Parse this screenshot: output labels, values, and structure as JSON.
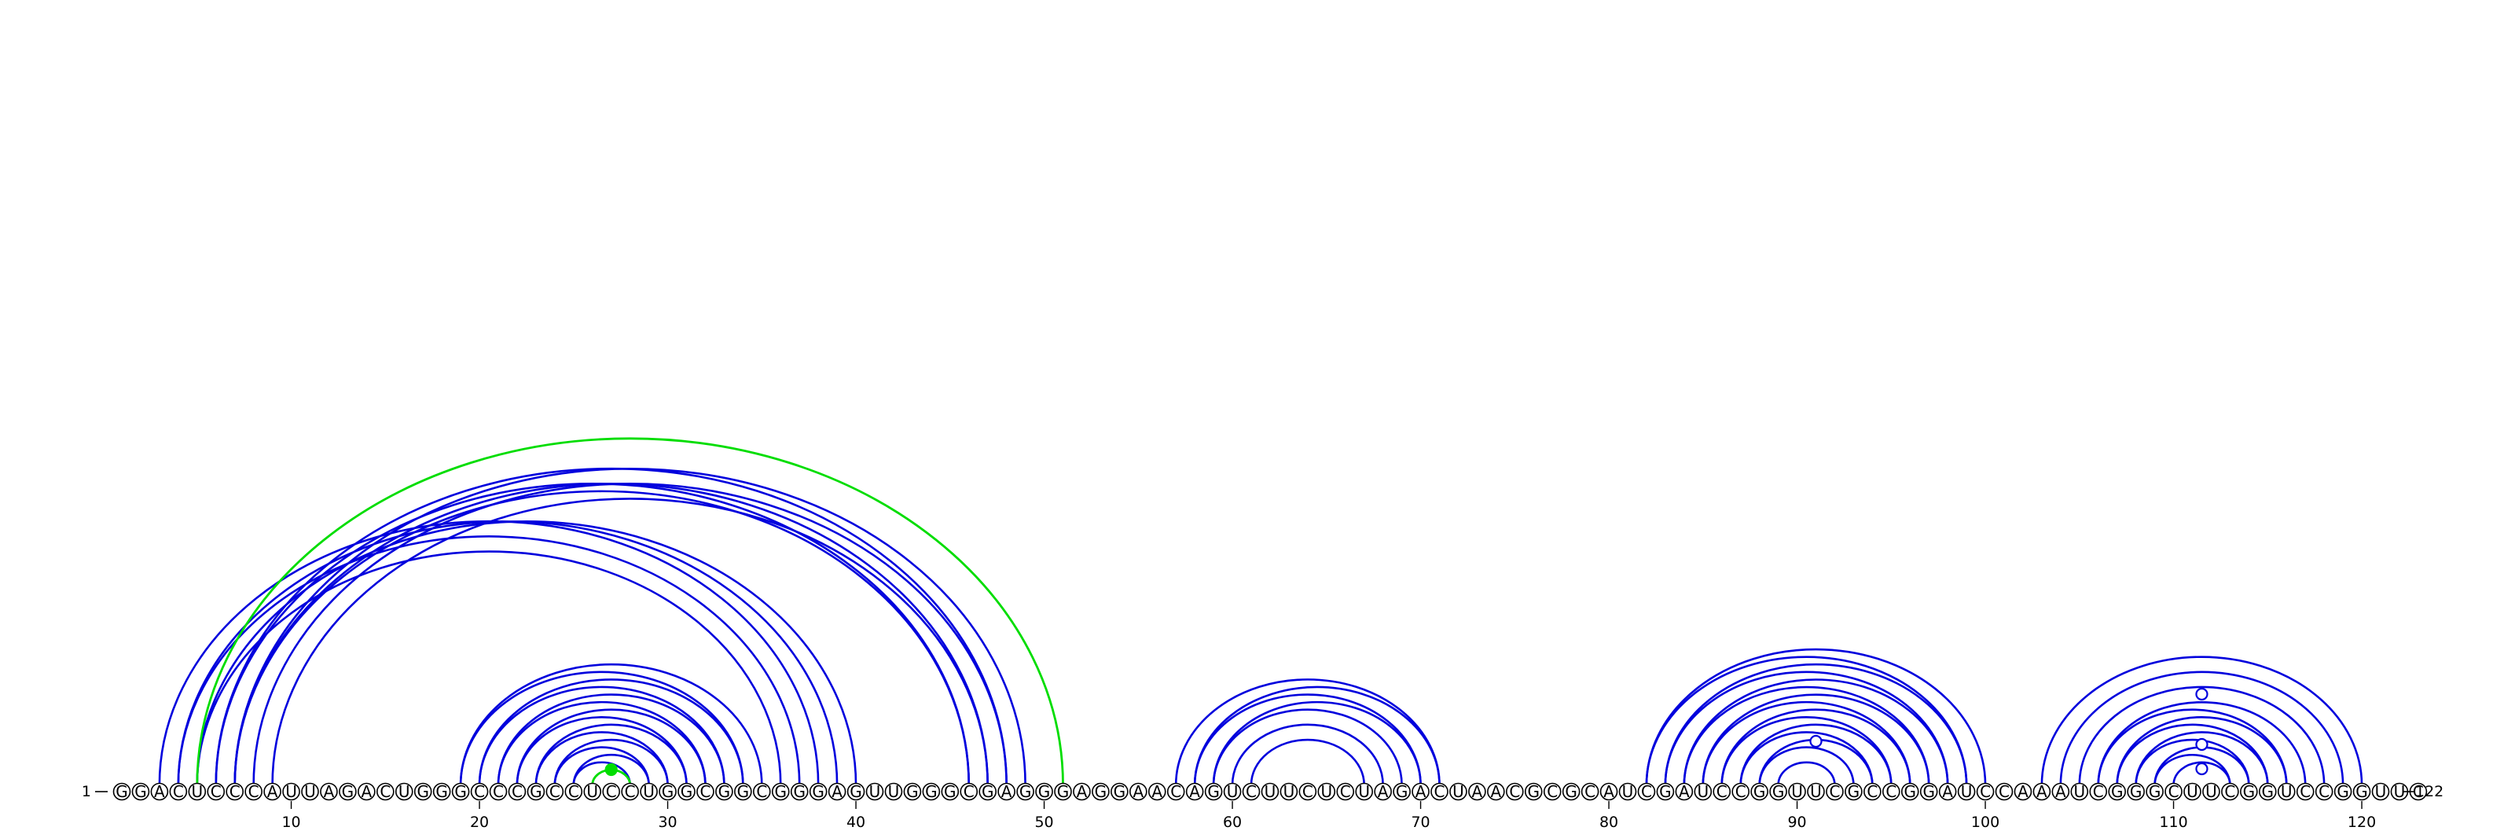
{
  "sequence": "GGACUCCCAUUAGACUGGGCCCGCCUCCUGGCGGCGGGAGUUGGGCGAGGGAGGAACAGUCUUCUCUAGACUAACGCGCAUCGAUCCGGUUCGCCGGAUCCAAAUCGGGCUUCGGUCCGGUUC",
  "start_label": "1",
  "end_label": "122",
  "tick_labels": [
    "10",
    "20",
    "30",
    "40",
    "50",
    "60",
    "70",
    "80",
    "90",
    "100",
    "110",
    "120"
  ],
  "colors": {
    "pair": "#0000dd",
    "pseudoknot": "#00dd00",
    "nucleotide_stroke": "#000000"
  },
  "base_pairs": [
    [
      3,
      38
    ],
    [
      4,
      39
    ],
    [
      4,
      37
    ],
    [
      5,
      40
    ],
    [
      5,
      36
    ],
    [
      6,
      46
    ],
    [
      6,
      48
    ],
    [
      7,
      46
    ],
    [
      7,
      47
    ],
    [
      7,
      49
    ],
    [
      8,
      48
    ],
    [
      9,
      47
    ],
    [
      19,
      34
    ],
    [
      19,
      35
    ],
    [
      20,
      33
    ],
    [
      20,
      34
    ],
    [
      21,
      32
    ],
    [
      21,
      33
    ],
    [
      22,
      31
    ],
    [
      22,
      32
    ],
    [
      23,
      30
    ],
    [
      23,
      31
    ],
    [
      24,
      29
    ],
    [
      24,
      30
    ],
    [
      25,
      28
    ],
    [
      25,
      29
    ],
    [
      57,
      71
    ],
    [
      58,
      70
    ],
    [
      58,
      71
    ],
    [
      59,
      69
    ],
    [
      59,
      70
    ],
    [
      60,
      68
    ],
    [
      61,
      67
    ],
    [
      82,
      99
    ],
    [
      82,
      100
    ],
    [
      83,
      98
    ],
    [
      83,
      99
    ],
    [
      84,
      97
    ],
    [
      84,
      98
    ],
    [
      85,
      96
    ],
    [
      85,
      97
    ],
    [
      86,
      95
    ],
    [
      86,
      96
    ],
    [
      87,
      94
    ],
    [
      87,
      95
    ],
    [
      88,
      93
    ],
    [
      88,
      94
    ],
    [
      89,
      92
    ],
    [
      103,
      120
    ],
    [
      104,
      119
    ],
    [
      105,
      118
    ],
    [
      106,
      117
    ],
    [
      106,
      116
    ],
    [
      107,
      116
    ],
    [
      107,
      115
    ],
    [
      108,
      115
    ],
    [
      108,
      114
    ],
    [
      109,
      114
    ],
    [
      109,
      113
    ],
    [
      110,
      113
    ]
  ],
  "pseudoknot_pairs": [
    [
      5,
      51
    ],
    [
      26,
      28
    ]
  ],
  "markers": [
    {
      "position": 27,
      "style": "filled",
      "color": "#00dd00"
    },
    {
      "position": 91,
      "style": "open",
      "color": "#0000dd"
    },
    {
      "position": 111.5,
      "style": "open",
      "color": "#0000dd"
    },
    {
      "position": 111.5,
      "style": "open",
      "color": "#0000dd"
    },
    {
      "position": 111.5,
      "style": "open",
      "color": "#0000dd"
    }
  ]
}
